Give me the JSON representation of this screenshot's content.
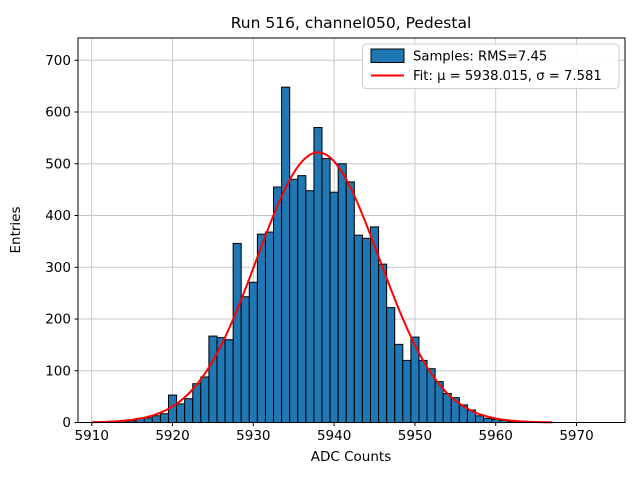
{
  "chart_data": {
    "type": "bar",
    "subtype": "histogram-with-fit",
    "title": "Run 516, channel050, Pedestal",
    "xlabel": "ADC Counts",
    "ylabel": "Entries",
    "xlim": [
      5908.3,
      5976.0
    ],
    "ylim": [
      0,
      743
    ],
    "x_ticks": [
      5910,
      5920,
      5930,
      5940,
      5950,
      5960,
      5970
    ],
    "y_ticks": [
      0,
      100,
      200,
      300,
      400,
      500,
      600,
      700
    ],
    "grid": true,
    "grid_color": "#c7c7c7",
    "bar_color": "#1f77b4",
    "bar_edge_color": "#000000",
    "fit_color": "#ff0000",
    "bin_width": 1,
    "bin_centers": [
      5913,
      5914,
      5915,
      5916,
      5917,
      5918,
      5919,
      5920,
      5921,
      5922,
      5923,
      5924,
      5925,
      5926,
      5927,
      5928,
      5929,
      5930,
      5931,
      5932,
      5933,
      5934,
      5935,
      5936,
      5937,
      5938,
      5939,
      5940,
      5941,
      5942,
      5943,
      5944,
      5945,
      5946,
      5947,
      5948,
      5949,
      5950,
      5951,
      5952,
      5953,
      5954,
      5955,
      5956,
      5957,
      5958,
      5959,
      5960,
      5961,
      5962,
      5963,
      5964
    ],
    "counts": [
      2,
      3,
      3,
      8,
      9,
      13,
      17,
      53,
      36,
      46,
      75,
      88,
      167,
      164,
      160,
      346,
      243,
      271,
      364,
      368,
      455,
      648,
      470,
      477,
      448,
      570,
      510,
      445,
      500,
      465,
      362,
      356,
      378,
      306,
      222,
      151,
      120,
      165,
      120,
      104,
      79,
      56,
      48,
      34,
      24,
      13,
      8,
      6,
      4,
      2,
      1,
      1
    ],
    "fit": {
      "mu": 5938.015,
      "sigma": 7.581,
      "amplitude": 522,
      "x_start": 5910.0,
      "x_end": 5967.0
    },
    "legend": {
      "position": "upper right",
      "items": [
        {
          "swatch": "bar",
          "label": "Samples: RMS=7.45"
        },
        {
          "swatch": "line",
          "label": "Fit: μ = 5938.015, σ = 7.581"
        }
      ]
    }
  }
}
